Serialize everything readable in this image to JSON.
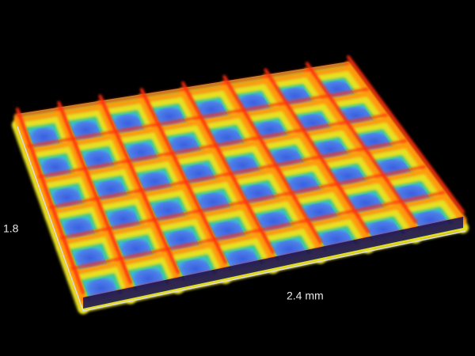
{
  "axis_labels": {
    "y": "1.8",
    "x": "2.4 mm"
  }
}
